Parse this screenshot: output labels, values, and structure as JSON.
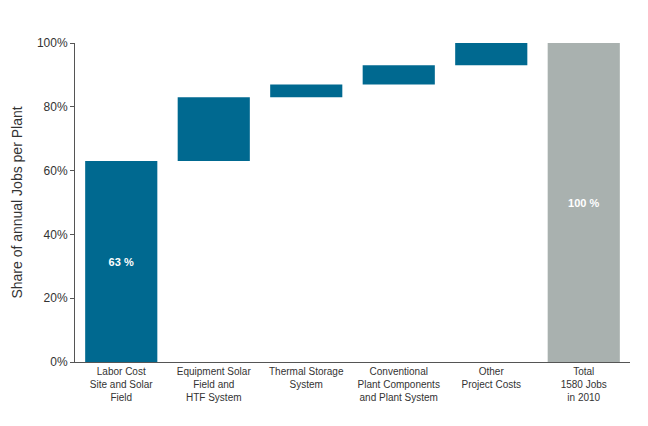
{
  "chart_data": {
    "type": "waterfall",
    "y_label": "Share of annual Jobs per Plant",
    "categories": [
      "Labor Cost\nSite and Solar\nField",
      "Equipment Solar\nField and\nHTF System",
      "Thermal Storage\nSystem",
      "Conventional\nPlant Components\nand Plant System",
      "Other\nProject Costs",
      "Total\n1580 Jobs\nin 2010"
    ],
    "values": [
      63,
      20,
      4,
      6,
      7,
      100
    ],
    "value_labels": [
      "63 %",
      null,
      null,
      null,
      null,
      "100 %"
    ],
    "colors": [
      "#006990",
      "#006990",
      "#006990",
      "#006990",
      "#006990",
      "#a9b1af"
    ],
    "ylim": [
      0,
      100
    ],
    "yticks": [
      {
        "value": 0,
        "label": "0%"
      },
      {
        "value": 20,
        "label": "20%"
      },
      {
        "value": 40,
        "label": "40%"
      },
      {
        "value": 60,
        "label": "60%"
      },
      {
        "value": 80,
        "label": "80%"
      },
      {
        "value": 100,
        "label": "100%"
      }
    ],
    "grid": false,
    "data_labels": true
  }
}
